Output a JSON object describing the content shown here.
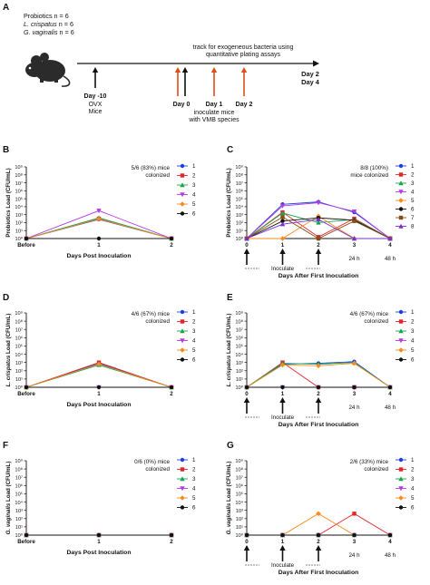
{
  "panel_a": {
    "letter": "A",
    "groups": [
      {
        "text": "Probiotics n = 6"
      },
      {
        "italic": "L. crispatus",
        "text": " n = 6"
      },
      {
        "italic": "G. vaginalis",
        "text": " n = 6"
      }
    ],
    "track_lines": [
      "track for exogeneous bacteria using",
      "quantitative plating assays"
    ],
    "inoculate_lines": [
      "inoculate mice",
      "with VMB species"
    ],
    "day_minus10": {
      "label": "Day -10",
      "sub": [
        "OVX",
        "Mice"
      ]
    },
    "days": [
      "Day 0",
      "Day 1",
      "Day 2"
    ],
    "end_labels": [
      {
        "text": "Day 2",
        "color": "#111111"
      },
      {
        "text": "Day 4",
        "color": "#e04e1b"
      }
    ],
    "colors": {
      "arrow_black": "#111111",
      "arrow_red": "#e04e1b"
    },
    "icon": "mouse-icon"
  },
  "panel_titles": {
    "B": "B",
    "C": "C",
    "D": "D",
    "E": "E",
    "F": "F",
    "G": "G"
  },
  "chart_data": [
    {
      "id": "B",
      "type": "line",
      "ylabel_parts": [
        {
          "t": "Probiotics Load (CFU/mL)",
          "i": false
        }
      ],
      "xlabel": "Days Post Inoculation",
      "categories": [
        "Before",
        "1",
        "2"
      ],
      "yticks": [
        "10⁰",
        "10¹",
        "10²",
        "10³",
        "10⁴",
        "10⁵",
        "10⁶",
        "10⁷",
        "10⁸",
        "10⁹"
      ],
      "ylim": [
        0,
        9
      ],
      "annotation": [
        "5/6 (83%) mice",
        "colonized"
      ],
      "legend": [
        "1",
        "2",
        "3",
        "4",
        "5",
        "6"
      ],
      "series": [
        {
          "name": "1",
          "color": "#1a3fe0",
          "marker": "circle",
          "values": [
            0,
            2.4,
            0
          ]
        },
        {
          "name": "2",
          "color": "#e0262d",
          "marker": "square",
          "values": [
            0,
            2.5,
            0
          ]
        },
        {
          "name": "3",
          "color": "#1aa64a",
          "marker": "triangle-up",
          "values": [
            0,
            2.6,
            0
          ]
        },
        {
          "name": "4",
          "color": "#b43be0",
          "marker": "triangle-down",
          "values": [
            0,
            3.5,
            0
          ]
        },
        {
          "name": "5",
          "color": "#f58c1e",
          "marker": "diamond",
          "values": [
            0,
            2.45,
            0
          ]
        },
        {
          "name": "6",
          "color": "#111111",
          "marker": "circle",
          "values": [
            0,
            0,
            0
          ]
        }
      ]
    },
    {
      "id": "C",
      "type": "line",
      "ylabel_parts": [
        {
          "t": "Probiotics Load (CFU/mL)",
          "i": false
        }
      ],
      "xlabel": "Days After First Inoculation",
      "categories": [
        "0",
        "1",
        "2",
        "3",
        "4"
      ],
      "sub_categories": [
        "",
        "",
        "",
        "24 h",
        "48 h"
      ],
      "yticks": [
        "10⁰",
        "10¹",
        "10²",
        "10³",
        "10⁴",
        "10⁵",
        "10⁶",
        "10⁷",
        "10⁸",
        "10⁹"
      ],
      "ylim": [
        0,
        9
      ],
      "annotation": [
        "8/8 (100%)",
        "mice colonized"
      ],
      "inoculate_label": "Inoculate",
      "inoculate_at": [
        0,
        1,
        2
      ],
      "legend": [
        "1",
        "2",
        "3",
        "4",
        "5",
        "6",
        "7",
        "8"
      ],
      "legend_display": [
        "1",
        "2",
        "3",
        "4",
        "5",
        "6",
        "7",
        "8"
      ],
      "series": [
        {
          "name": "1",
          "color": "#1a3fe0",
          "marker": "circle",
          "values": [
            0,
            4.3,
            4.6,
            3.3,
            0
          ]
        },
        {
          "name": "2",
          "color": "#e0262d",
          "marker": "square",
          "values": [
            0,
            3.3,
            0.2,
            2.5,
            0
          ]
        },
        {
          "name": "3",
          "color": "#1aa64a",
          "marker": "triangle-up",
          "values": [
            0,
            3.2,
            2.0,
            2.4,
            0
          ]
        },
        {
          "name": "4",
          "color": "#b43be0",
          "marker": "triangle-down",
          "values": [
            0,
            4.1,
            4.5,
            3.4,
            0
          ]
        },
        {
          "name": "5",
          "color": "#f58c1e",
          "marker": "diamond",
          "values": [
            0,
            0,
            2.8,
            0,
            0
          ]
        },
        {
          "name": "6",
          "color": "#111111",
          "marker": "circle",
          "values": [
            0,
            2.2,
            2.6,
            2.3,
            0
          ]
        },
        {
          "name": "7",
          "color": "#8a4b14",
          "marker": "square",
          "values": [
            0,
            2.7,
            0,
            2.2,
            0
          ]
        },
        {
          "name": "8",
          "color": "#7a2fd0",
          "marker": "triangle-up",
          "values": [
            0,
            1.8,
            2.4,
            0,
            0
          ]
        }
      ]
    },
    {
      "id": "D",
      "type": "line",
      "ylabel_parts": [
        {
          "t": "L. crispatus",
          "i": true
        },
        {
          "t": " Load (CFU/mL)",
          "i": false
        }
      ],
      "xlabel": "Days Post Inoculation",
      "categories": [
        "Before",
        "1",
        "2"
      ],
      "yticks": [
        "10⁰",
        "10¹",
        "10²",
        "10³",
        "10⁴",
        "10⁵",
        "10⁶",
        "10⁷",
        "10⁸",
        "10⁹"
      ],
      "ylim": [
        0,
        9
      ],
      "annotation": [
        "4/6 (67%) mice",
        "colonized"
      ],
      "legend": [
        "1",
        "2",
        "3",
        "4",
        "5",
        "6"
      ],
      "series": [
        {
          "name": "1",
          "color": "#1a3fe0",
          "marker": "circle",
          "values": [
            0,
            2.9,
            0
          ]
        },
        {
          "name": "2",
          "color": "#e0262d",
          "marker": "square",
          "values": [
            0,
            3.0,
            0
          ]
        },
        {
          "name": "3",
          "color": "#1aa64a",
          "marker": "triangle-up",
          "values": [
            0,
            2.7,
            0
          ]
        },
        {
          "name": "4",
          "color": "#b43be0",
          "marker": "triangle-down",
          "values": [
            0,
            0,
            0
          ]
        },
        {
          "name": "5",
          "color": "#f58c1e",
          "marker": "diamond",
          "values": [
            0,
            2.8,
            0
          ]
        },
        {
          "name": "6",
          "color": "#111111",
          "marker": "circle",
          "values": [
            0,
            0,
            0
          ]
        }
      ]
    },
    {
      "id": "E",
      "type": "line",
      "ylabel_parts": [
        {
          "t": "L. crispatus",
          "i": true
        },
        {
          "t": " Load (CFU/mL)",
          "i": false
        }
      ],
      "xlabel": "Days After First Inoculation",
      "categories": [
        "0",
        "1",
        "2",
        "3",
        "4"
      ],
      "sub_categories": [
        "",
        "",
        "",
        "24 h",
        "48 h"
      ],
      "yticks": [
        "10⁰",
        "10¹",
        "10²",
        "10³",
        "10⁴",
        "10⁵",
        "10⁶",
        "10⁷",
        "10⁸",
        "10⁹"
      ],
      "ylim": [
        0,
        9
      ],
      "annotation": [
        "4/6 (67%) mice",
        "colonized"
      ],
      "inoculate_label": "Inoculate",
      "inoculate_at": [
        0,
        1,
        2
      ],
      "legend": [
        "1",
        "2",
        "3",
        "4",
        "5",
        "6"
      ],
      "legend_display": [
        "1",
        "2",
        "3",
        "4",
        "5",
        "6"
      ],
      "series": [
        {
          "name": "1",
          "color": "#1a3fe0",
          "marker": "circle",
          "values": [
            0,
            2.8,
            2.9,
            3.1,
            0
          ]
        },
        {
          "name": "2",
          "color": "#e0262d",
          "marker": "square",
          "values": [
            0,
            3.0,
            0,
            0,
            0
          ]
        },
        {
          "name": "3",
          "color": "#1aa64a",
          "marker": "triangle-up",
          "values": [
            0,
            2.9,
            2.8,
            3.0,
            0
          ]
        },
        {
          "name": "4",
          "color": "#b43be0",
          "marker": "triangle-down",
          "values": [
            0,
            0,
            0,
            0,
            0
          ]
        },
        {
          "name": "5",
          "color": "#f58c1e",
          "marker": "diamond",
          "values": [
            0,
            2.7,
            2.6,
            2.9,
            0
          ]
        },
        {
          "name": "6",
          "color": "#111111",
          "marker": "circle",
          "values": [
            0,
            0,
            0,
            0,
            0
          ]
        }
      ]
    },
    {
      "id": "F",
      "type": "line",
      "ylabel_parts": [
        {
          "t": "G. vaginalis",
          "i": true
        },
        {
          "t": " Load (CFU/mL)",
          "i": false
        }
      ],
      "xlabel": "Days Post Inoculation",
      "categories": [
        "Before",
        "1",
        "2"
      ],
      "yticks": [
        "10⁰",
        "10¹",
        "10²",
        "10³",
        "10⁴",
        "10⁵",
        "10⁶",
        "10⁷",
        "10⁸",
        "10⁹"
      ],
      "ylim": [
        0,
        9
      ],
      "annotation": [
        "0/6 (0%) mice",
        "colonized"
      ],
      "legend": [
        "1",
        "2",
        "3",
        "4",
        "5",
        "6"
      ],
      "series": [
        {
          "name": "1",
          "color": "#1a3fe0",
          "marker": "circle",
          "values": [
            0,
            0,
            0
          ]
        },
        {
          "name": "2",
          "color": "#e0262d",
          "marker": "square",
          "values": [
            0,
            0,
            0
          ]
        },
        {
          "name": "3",
          "color": "#1aa64a",
          "marker": "triangle-up",
          "values": [
            0,
            0,
            0
          ]
        },
        {
          "name": "4",
          "color": "#b43be0",
          "marker": "triangle-down",
          "values": [
            0,
            0,
            0
          ]
        },
        {
          "name": "5",
          "color": "#f58c1e",
          "marker": "diamond",
          "values": [
            0,
            0,
            0
          ]
        },
        {
          "name": "6",
          "color": "#111111",
          "marker": "circle",
          "values": [
            0,
            0,
            0
          ]
        }
      ]
    },
    {
      "id": "G",
      "type": "line",
      "ylabel_parts": [
        {
          "t": "G. vaginalis",
          "i": true
        },
        {
          "t": " Load (CFU/mL)",
          "i": false
        }
      ],
      "xlabel": "Days After First Inoculation",
      "categories": [
        "0",
        "1",
        "2",
        "3",
        "4"
      ],
      "sub_categories": [
        "",
        "",
        "",
        "24 h",
        "48 h"
      ],
      "yticks": [
        "10⁰",
        "10¹",
        "10²",
        "10³",
        "10⁴",
        "10⁵",
        "10⁶",
        "10⁷",
        "10⁸",
        "10⁹"
      ],
      "ylim": [
        0,
        9
      ],
      "annotation": [
        "2/6 (33%) mice",
        "colonized"
      ],
      "inoculate_label": "Inoculate",
      "inoculate_at": [
        0,
        1,
        2
      ],
      "legend": [
        "1",
        "2",
        "3",
        "4",
        "5",
        "6"
      ],
      "legend_display": [
        "1",
        "2",
        "3",
        "4",
        "5",
        "6"
      ],
      "series": [
        {
          "name": "1",
          "color": "#1a3fe0",
          "marker": "circle",
          "values": [
            0,
            0,
            0,
            0,
            0
          ]
        },
        {
          "name": "2",
          "color": "#e0262d",
          "marker": "square",
          "values": [
            0,
            0,
            0,
            2.6,
            0
          ]
        },
        {
          "name": "3",
          "color": "#1aa64a",
          "marker": "triangle-up",
          "values": [
            0,
            0,
            0,
            0,
            0
          ]
        },
        {
          "name": "4",
          "color": "#b43be0",
          "marker": "triangle-down",
          "values": [
            0,
            0,
            0,
            0,
            0
          ]
        },
        {
          "name": "5",
          "color": "#f58c1e",
          "marker": "diamond",
          "values": [
            0,
            0,
            2.6,
            0,
            0
          ]
        },
        {
          "name": "6",
          "color": "#111111",
          "marker": "circle",
          "values": [
            0,
            0,
            0,
            0,
            0
          ]
        }
      ]
    }
  ]
}
